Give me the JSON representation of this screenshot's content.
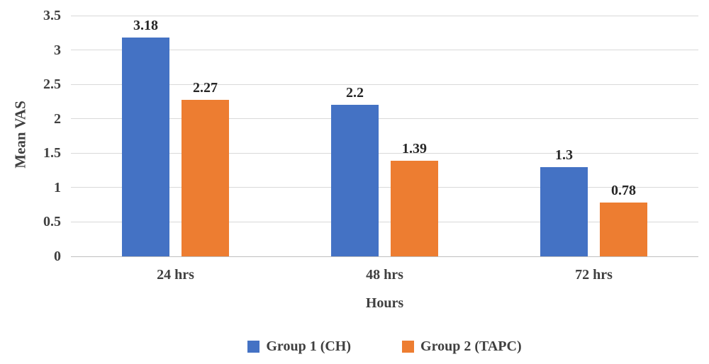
{
  "chart_data": {
    "type": "bar",
    "title": "",
    "categories": [
      "24 hrs",
      "48 hrs",
      "72 hrs"
    ],
    "series": [
      {
        "name": "Group 1 (CH)",
        "values": [
          3.18,
          2.2,
          1.3
        ],
        "labels": [
          "3.18",
          "2.2",
          "1.3"
        ],
        "color": "#4472C4"
      },
      {
        "name": "Group 2 (TAPC)",
        "values": [
          2.27,
          1.39,
          0.78
        ],
        "labels": [
          "2.27",
          "1.39",
          "0.78"
        ],
        "color": "#ED7D31"
      }
    ],
    "xlabel": "Hours",
    "ylabel": "Mean VAS",
    "ylim": [
      0,
      3.5
    ],
    "yticks": [
      0,
      0.5,
      1,
      1.5,
      2,
      2.5,
      3,
      3.5
    ],
    "ytick_labels": [
      "0",
      "0.5",
      "1",
      "1.5",
      "2",
      "2.5",
      "3",
      "3.5"
    ],
    "grid": "horizontal",
    "legend_position": "bottom",
    "colors": {
      "gridline": "#D9D9D9",
      "axis_line": "#BFBFBF",
      "axis_text": "#404040",
      "data_label_text": "#262626"
    }
  }
}
